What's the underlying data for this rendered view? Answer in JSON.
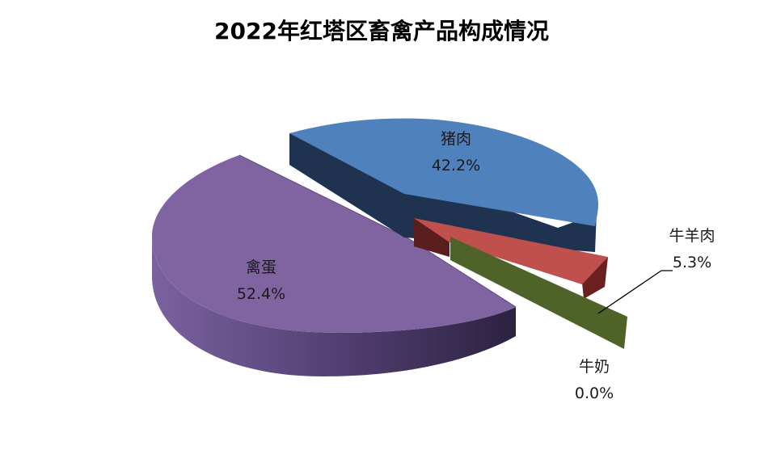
{
  "chart_data": {
    "type": "pie",
    "title": "2022年红塔区畜禽产品构成情况",
    "slices": [
      {
        "label": "禽蛋",
        "value": 52.4,
        "display": "52.4%",
        "color": "#8064A2"
      },
      {
        "label": "猪肉",
        "value": 42.2,
        "display": "42.2%",
        "color": "#4F81BD"
      },
      {
        "label": "牛羊肉",
        "value": 5.3,
        "display": "5.3%",
        "color": "#C0504D"
      },
      {
        "label": "牛奶",
        "value": 0.0,
        "display": "0.0%",
        "color": "#4F6228"
      }
    ],
    "legend": "none",
    "three_d": true
  }
}
